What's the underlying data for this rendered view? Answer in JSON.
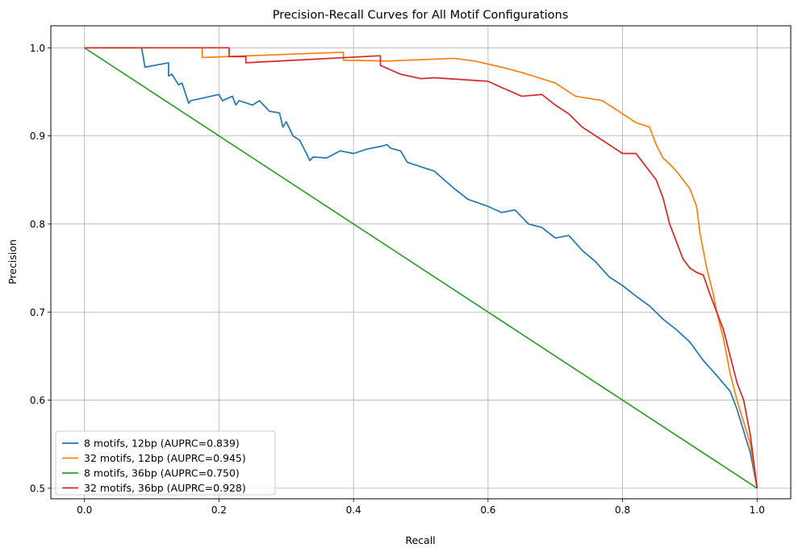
{
  "chart_data": {
    "type": "line",
    "title": "Precision-Recall Curves for All Motif Configurations",
    "xlabel": "Recall",
    "ylabel": "Precision",
    "xlim": [
      -0.05,
      1.05
    ],
    "ylim": [
      0.488,
      1.025
    ],
    "xticks": [
      0.0,
      0.2,
      0.4,
      0.6,
      0.8,
      1.0
    ],
    "xtick_labels": [
      "0.0",
      "0.2",
      "0.4",
      "0.6",
      "0.8",
      "1.0"
    ],
    "yticks": [
      0.5,
      0.6,
      0.7,
      0.8,
      0.9,
      1.0
    ],
    "ytick_labels": [
      "0.5",
      "0.6",
      "0.7",
      "0.8",
      "0.9",
      "1.0"
    ],
    "grid": true,
    "legend_position": "lower-left",
    "series": [
      {
        "name": "8 motifs, 12bp (AUPRC=0.839)",
        "color": "#1f77b4",
        "x": [
          0.0,
          0.085,
          0.09,
          0.125,
          0.125,
          0.13,
          0.14,
          0.145,
          0.155,
          0.158,
          0.2,
          0.205,
          0.22,
          0.225,
          0.23,
          0.25,
          0.26,
          0.275,
          0.29,
          0.295,
          0.3,
          0.31,
          0.32,
          0.33,
          0.335,
          0.34,
          0.36,
          0.38,
          0.4,
          0.42,
          0.44,
          0.45,
          0.455,
          0.47,
          0.48,
          0.5,
          0.52,
          0.55,
          0.57,
          0.6,
          0.62,
          0.64,
          0.66,
          0.68,
          0.7,
          0.72,
          0.74,
          0.76,
          0.78,
          0.8,
          0.82,
          0.84,
          0.86,
          0.88,
          0.9,
          0.92,
          0.94,
          0.96,
          0.97,
          0.98,
          0.99,
          1.0
        ],
        "y": [
          1.0,
          1.0,
          0.978,
          0.983,
          0.968,
          0.97,
          0.958,
          0.96,
          0.937,
          0.94,
          0.947,
          0.94,
          0.945,
          0.935,
          0.94,
          0.935,
          0.94,
          0.928,
          0.926,
          0.91,
          0.916,
          0.9,
          0.895,
          0.88,
          0.872,
          0.876,
          0.875,
          0.883,
          0.88,
          0.885,
          0.888,
          0.89,
          0.886,
          0.883,
          0.87,
          0.865,
          0.86,
          0.84,
          0.828,
          0.82,
          0.813,
          0.816,
          0.8,
          0.796,
          0.784,
          0.787,
          0.77,
          0.757,
          0.74,
          0.73,
          0.718,
          0.707,
          0.692,
          0.68,
          0.666,
          0.645,
          0.628,
          0.61,
          0.59,
          0.565,
          0.54,
          0.5
        ]
      },
      {
        "name": "32 motifs, 12bp (AUPRC=0.945)",
        "color": "#ff7f0e",
        "x": [
          0.0,
          0.175,
          0.175,
          0.385,
          0.385,
          0.45,
          0.55,
          0.58,
          0.62,
          0.65,
          0.7,
          0.73,
          0.77,
          0.8,
          0.82,
          0.84,
          0.85,
          0.86,
          0.87,
          0.88,
          0.89,
          0.9,
          0.91,
          0.915,
          0.92,
          0.925,
          0.935,
          0.94,
          0.95,
          0.96,
          0.97,
          0.98,
          0.99,
          1.0
        ],
        "y": [
          1.0,
          1.0,
          0.989,
          0.995,
          0.986,
          0.985,
          0.988,
          0.985,
          0.978,
          0.972,
          0.96,
          0.945,
          0.94,
          0.925,
          0.915,
          0.91,
          0.89,
          0.875,
          0.868,
          0.86,
          0.85,
          0.84,
          0.82,
          0.79,
          0.77,
          0.75,
          0.72,
          0.7,
          0.67,
          0.63,
          0.6,
          0.575,
          0.55,
          0.5
        ]
      },
      {
        "name": "8 motifs, 36bp (AUPRC=0.750)",
        "color": "#2ca02c",
        "x": [
          0.0,
          1.0
        ],
        "y": [
          1.0,
          0.5
        ]
      },
      {
        "name": "32 motifs, 36bp (AUPRC=0.928)",
        "color": "#d62728",
        "x": [
          0.0,
          0.215,
          0.215,
          0.24,
          0.24,
          0.44,
          0.44,
          0.47,
          0.5,
          0.52,
          0.6,
          0.62,
          0.65,
          0.68,
          0.7,
          0.72,
          0.74,
          0.76,
          0.78,
          0.8,
          0.82,
          0.83,
          0.84,
          0.85,
          0.86,
          0.87,
          0.88,
          0.89,
          0.9,
          0.91,
          0.92,
          0.93,
          0.94,
          0.95,
          0.96,
          0.97,
          0.98,
          0.99,
          1.0
        ],
        "y": [
          1.0,
          1.0,
          0.99,
          0.99,
          0.983,
          0.991,
          0.98,
          0.97,
          0.965,
          0.966,
          0.962,
          0.955,
          0.945,
          0.947,
          0.935,
          0.925,
          0.91,
          0.9,
          0.89,
          0.88,
          0.88,
          0.87,
          0.86,
          0.85,
          0.83,
          0.8,
          0.78,
          0.76,
          0.75,
          0.745,
          0.742,
          0.72,
          0.7,
          0.68,
          0.65,
          0.62,
          0.6,
          0.56,
          0.5
        ]
      }
    ]
  }
}
